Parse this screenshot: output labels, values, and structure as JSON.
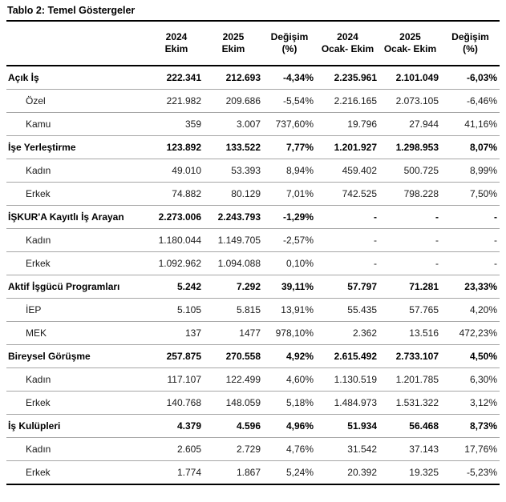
{
  "title": "Tablo 2: Temel Göstergeler",
  "table": {
    "columns": [
      {
        "line1": "2024",
        "line2": "Ekim"
      },
      {
        "line1": "2025",
        "line2": "Ekim"
      },
      {
        "line1": "Değişim",
        "line2": "(%)"
      },
      {
        "line1": "2024",
        "line2": "Ocak- Ekim"
      },
      {
        "line1": "2025",
        "line2": "Ocak- Ekim"
      },
      {
        "line1": "Değişim",
        "line2": "(%)"
      }
    ],
    "rows": [
      {
        "label": "Açık İş",
        "bold": true,
        "indent": false,
        "values": [
          "222.341",
          "212.693",
          "-4,34%",
          "2.235.961",
          "2.101.049",
          "-6,03%"
        ]
      },
      {
        "label": "Özel",
        "bold": false,
        "indent": true,
        "values": [
          "221.982",
          "209.686",
          "-5,54%",
          "2.216.165",
          "2.073.105",
          "-6,46%"
        ]
      },
      {
        "label": "Kamu",
        "bold": false,
        "indent": true,
        "values": [
          "359",
          "3.007",
          "737,60%",
          "19.796",
          "27.944",
          "41,16%"
        ]
      },
      {
        "label": "İşe Yerleştirme",
        "bold": true,
        "indent": false,
        "values": [
          "123.892",
          "133.522",
          "7,77%",
          "1.201.927",
          "1.298.953",
          "8,07%"
        ]
      },
      {
        "label": "Kadın",
        "bold": false,
        "indent": true,
        "values": [
          "49.010",
          "53.393",
          "8,94%",
          "459.402",
          "500.725",
          "8,99%"
        ]
      },
      {
        "label": "Erkek",
        "bold": false,
        "indent": true,
        "values": [
          "74.882",
          "80.129",
          "7,01%",
          "742.525",
          "798.228",
          "7,50%"
        ]
      },
      {
        "label": "İŞKUR'A Kayıtlı İş Arayan",
        "bold": true,
        "indent": false,
        "values": [
          "2.273.006",
          "2.243.793",
          "-1,29%",
          "-",
          "-",
          "-"
        ]
      },
      {
        "label": "Kadın",
        "bold": false,
        "indent": true,
        "values": [
          "1.180.044",
          "1.149.705",
          "-2,57%",
          "-",
          "-",
          "-"
        ]
      },
      {
        "label": "Erkek",
        "bold": false,
        "indent": true,
        "values": [
          "1.092.962",
          "1.094.088",
          "0,10%",
          "-",
          "-",
          "-"
        ]
      },
      {
        "label": "Aktif İşgücü Programları",
        "bold": true,
        "indent": false,
        "values": [
          "5.242",
          "7.292",
          "39,11%",
          "57.797",
          "71.281",
          "23,33%"
        ]
      },
      {
        "label": "İEP",
        "bold": false,
        "indent": true,
        "values": [
          "5.105",
          "5.815",
          "13,91%",
          "55.435",
          "57.765",
          "4,20%"
        ]
      },
      {
        "label": "MEK",
        "bold": false,
        "indent": true,
        "values": [
          "137",
          "1477",
          "978,10%",
          "2.362",
          "13.516",
          "472,23%"
        ]
      },
      {
        "label": "Bireysel Görüşme",
        "bold": true,
        "indent": false,
        "values": [
          "257.875",
          "270.558",
          "4,92%",
          "2.615.492",
          "2.733.107",
          "4,50%"
        ]
      },
      {
        "label": "Kadın",
        "bold": false,
        "indent": true,
        "values": [
          "117.107",
          "122.499",
          "4,60%",
          "1.130.519",
          "1.201.785",
          "6,30%"
        ]
      },
      {
        "label": "Erkek",
        "bold": false,
        "indent": true,
        "values": [
          "140.768",
          "148.059",
          "5,18%",
          "1.484.973",
          "1.531.322",
          "3,12%"
        ]
      },
      {
        "label": "İş Kulüpleri",
        "bold": true,
        "indent": false,
        "values": [
          "4.379",
          "4.596",
          "4,96%",
          "51.934",
          "56.468",
          "8,73%"
        ]
      },
      {
        "label": "Kadın",
        "bold": false,
        "indent": true,
        "values": [
          "2.605",
          "2.729",
          "4,76%",
          "31.542",
          "37.143",
          "17,76%"
        ]
      },
      {
        "label": "Erkek",
        "bold": false,
        "indent": true,
        "values": [
          "1.774",
          "1.867",
          "5,24%",
          "20.392",
          "19.325",
          "-5,23%"
        ]
      }
    ]
  }
}
